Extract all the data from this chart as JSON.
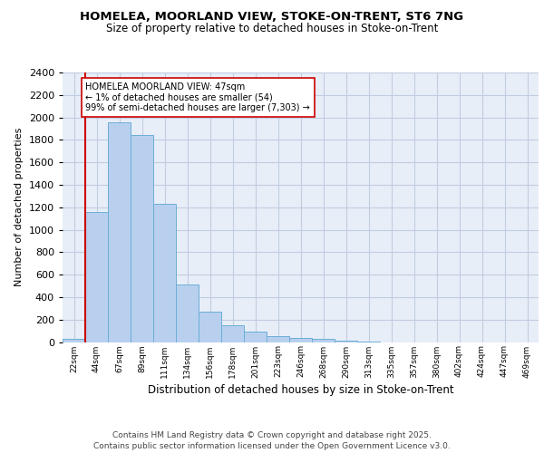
{
  "title1": "HOMELEA, MOORLAND VIEW, STOKE-ON-TRENT, ST6 7NG",
  "title2": "Size of property relative to detached houses in Stoke-on-Trent",
  "xlabel": "Distribution of detached houses by size in Stoke-on-Trent",
  "ylabel": "Number of detached properties",
  "categories": [
    "22sqm",
    "44sqm",
    "67sqm",
    "89sqm",
    "111sqm",
    "134sqm",
    "156sqm",
    "178sqm",
    "201sqm",
    "223sqm",
    "246sqm",
    "268sqm",
    "290sqm",
    "313sqm",
    "335sqm",
    "357sqm",
    "380sqm",
    "402sqm",
    "424sqm",
    "447sqm",
    "469sqm"
  ],
  "values": [
    25,
    1160,
    1960,
    1845,
    1230,
    515,
    270,
    150,
    90,
    50,
    40,
    30,
    10,
    5,
    0,
    0,
    0,
    0,
    0,
    0,
    0
  ],
  "bar_color": "#b8d0ee",
  "bar_edge_color": "#6baed6",
  "vline_color": "#cc0000",
  "annotation_text": "HOMELEA MOORLAND VIEW: 47sqm\n← 1% of detached houses are smaller (54)\n99% of semi-detached houses are larger (7,303) →",
  "annotation_box_color": "#ffffff",
  "annotation_box_edge_color": "#cc0000",
  "background_color": "#e8eef8",
  "grid_color": "#c0cce0",
  "figure_color": "#ffffff",
  "ylim": [
    0,
    2400
  ],
  "footer1": "Contains HM Land Registry data © Crown copyright and database right 2025.",
  "footer2": "Contains public sector information licensed under the Open Government Licence v3.0."
}
